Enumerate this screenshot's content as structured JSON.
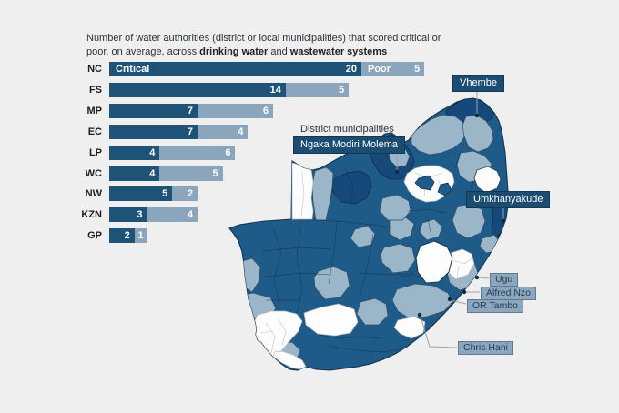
{
  "background": "#EFEFF0",
  "title": {
    "part1": "Number of water authorities (district or local municipalities) that scored critical or poor, on average, across ",
    "bold1": "drinking water",
    "part2": " and ",
    "bold2": "wastewater systems"
  },
  "chart_data": {
    "type": "bar",
    "orientation": "horizontal",
    "stacked": true,
    "title": "Number of water authorities (district or local municipalities) that scored critical or poor, on average, across drinking water and wastewater systems",
    "categories": [
      "NC",
      "FS",
      "MP",
      "EC",
      "LP",
      "WC",
      "NW",
      "KZN",
      "GP"
    ],
    "series": [
      {
        "name": "Critical",
        "color": "#1E5377",
        "values": [
          20,
          14,
          7,
          7,
          4,
          4,
          5,
          3,
          2
        ]
      },
      {
        "name": "Poor",
        "color": "#8BA6BC",
        "values": [
          5,
          5,
          6,
          4,
          6,
          5,
          2,
          4,
          1
        ]
      }
    ],
    "xlim": [
      0,
      25
    ],
    "value_labels": true,
    "legend_position": "inline-first-bar",
    "grid": false
  },
  "map": {
    "heading": "District municipalities",
    "labels": {
      "vhembe": "Vhembe",
      "ngaka": "Ngaka Modiri Molema",
      "umkhanyakude": "Umkhanyakude",
      "ugu": "Ugu",
      "alfred_nzo": "Alfred Nzo",
      "or_tambo": "OR Tambo",
      "chris_hani": "Chris Hani"
    },
    "colors": {
      "critical": "#1F5B88",
      "critical_dark": "#15497B",
      "poor": "#9BB5C9",
      "none": "#FDFDFD"
    }
  }
}
